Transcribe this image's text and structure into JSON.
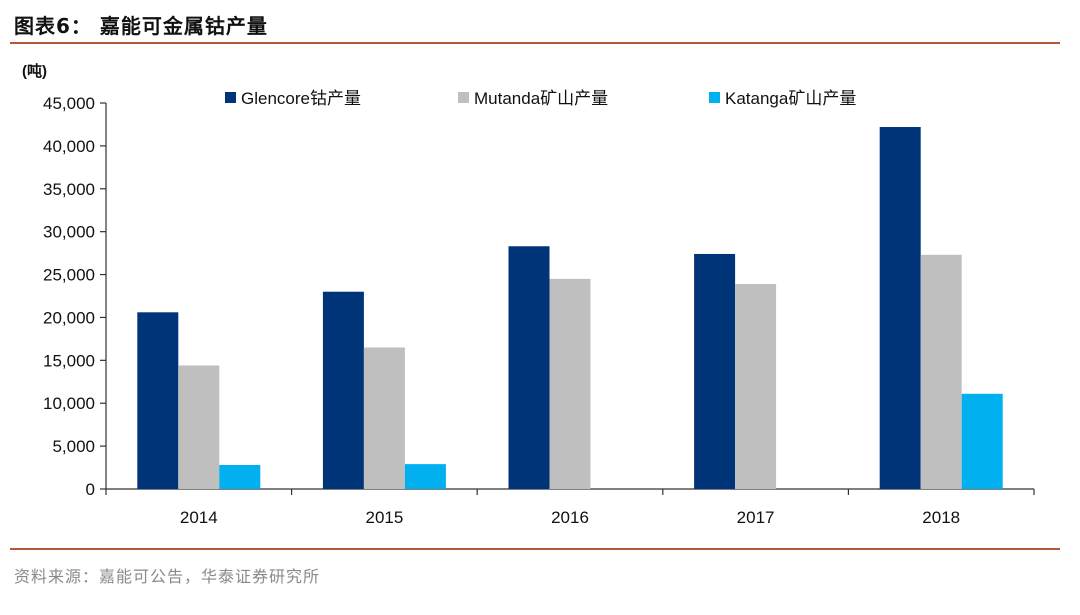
{
  "figure": {
    "title": "图表6：  嘉能可金属钴产量",
    "source": "资料来源：嘉能可公告，华泰证券研究所"
  },
  "chart_data": {
    "type": "bar",
    "title": "图表6：  嘉能可金属钴产量",
    "ylabel": "(吨)",
    "xlabel": "",
    "categories": [
      "2014",
      "2015",
      "2016",
      "2017",
      "2018"
    ],
    "ylim": [
      0,
      45000
    ],
    "yticks": [
      0,
      5000,
      10000,
      15000,
      20000,
      25000,
      30000,
      35000,
      40000,
      45000
    ],
    "ytick_labels": [
      "0",
      "5,000",
      "10,000",
      "15,000",
      "20,000",
      "25,000",
      "30,000",
      "35,000",
      "40,000",
      "45,000"
    ],
    "grid": false,
    "legend_position": "top",
    "series": [
      {
        "name": "Glencore钴产量",
        "color": "#003478",
        "values": [
          20600,
          23000,
          28300,
          27400,
          42200
        ]
      },
      {
        "name": "Mutanda矿山产量",
        "color": "#c0bfc0",
        "values": [
          14400,
          16500,
          24500,
          23900,
          27300
        ]
      },
      {
        "name": "Katanga矿山产量",
        "color": "#00b0ef",
        "values": [
          2800,
          2900,
          null,
          null,
          11100
        ]
      }
    ]
  }
}
